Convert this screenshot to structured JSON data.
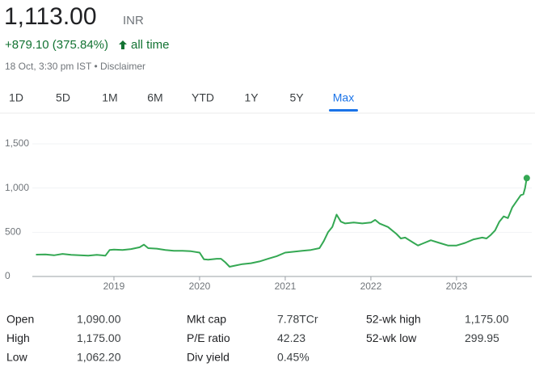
{
  "header": {
    "price": "1,113.00",
    "currency": "INR",
    "change": "+879.10 (375.84%)",
    "period": "all time",
    "meta": "18 Oct, 3:30 pm IST • Disclaimer"
  },
  "tabs": {
    "items": [
      "1D",
      "5D",
      "1M",
      "6M",
      "YTD",
      "1Y",
      "5Y",
      "Max"
    ],
    "selected": 7
  },
  "chart_data": {
    "type": "line",
    "x": [
      2018.09,
      2018.2,
      2018.3,
      2018.4,
      2018.5,
      2018.6,
      2018.7,
      2018.8,
      2018.9,
      2018.95,
      2019.0,
      2019.1,
      2019.2,
      2019.3,
      2019.35,
      2019.4,
      2019.5,
      2019.6,
      2019.7,
      2019.8,
      2019.9,
      2020.0,
      2020.05,
      2020.1,
      2020.2,
      2020.25,
      2020.3,
      2020.35,
      2020.4,
      2020.5,
      2020.6,
      2020.7,
      2020.8,
      2020.9,
      2021.0,
      2021.1,
      2021.2,
      2021.3,
      2021.4,
      2021.45,
      2021.5,
      2021.55,
      2021.6,
      2021.65,
      2021.7,
      2021.8,
      2021.9,
      2022.0,
      2022.05,
      2022.1,
      2022.2,
      2022.3,
      2022.35,
      2022.4,
      2022.5,
      2022.55,
      2022.6,
      2022.7,
      2022.8,
      2022.9,
      2023.0,
      2023.1,
      2023.2,
      2023.3,
      2023.35,
      2023.4,
      2023.45,
      2023.5,
      2023.55,
      2023.6,
      2023.65,
      2023.7,
      2023.75,
      2023.78,
      2023.8,
      2023.82
    ],
    "series": [
      {
        "name": "INR",
        "color": "#34a853",
        "values": [
          247,
          250,
          240,
          255,
          245,
          240,
          235,
          245,
          235,
          300,
          305,
          300,
          310,
          330,
          360,
          320,
          315,
          300,
          290,
          290,
          285,
          270,
          195,
          190,
          200,
          200,
          160,
          110,
          120,
          140,
          150,
          170,
          200,
          230,
          270,
          280,
          290,
          300,
          320,
          400,
          500,
          560,
          700,
          620,
          600,
          610,
          600,
          610,
          640,
          600,
          560,
          480,
          430,
          440,
          380,
          350,
          370,
          410,
          380,
          350,
          350,
          380,
          420,
          440,
          430,
          470,
          520,
          620,
          680,
          660,
          780,
          850,
          920,
          930,
          1000,
          1113
        ]
      }
    ],
    "xlim": [
      2018.0,
      2023.85
    ],
    "xticks": [
      2019,
      2020,
      2021,
      2022,
      2023
    ],
    "ylim": [
      0,
      1500
    ],
    "yticks": [
      0,
      500,
      {
        "value": 1000,
        "label": "1,000"
      },
      {
        "value": 1500,
        "label": "1,500"
      }
    ],
    "grid": true
  },
  "stats": [
    {
      "label": "Open",
      "value": "1,090.00"
    },
    {
      "label": "High",
      "value": "1,175.00"
    },
    {
      "label": "Low",
      "value": "1,062.20"
    },
    {
      "label": "Mkt cap",
      "value": "7.78TCr"
    },
    {
      "label": "P/E ratio",
      "value": "42.23"
    },
    {
      "label": "Div yield",
      "value": "0.45%"
    },
    {
      "label": "52-wk high",
      "value": "1,175.00"
    },
    {
      "label": "52-wk low",
      "value": "299.95"
    }
  ]
}
